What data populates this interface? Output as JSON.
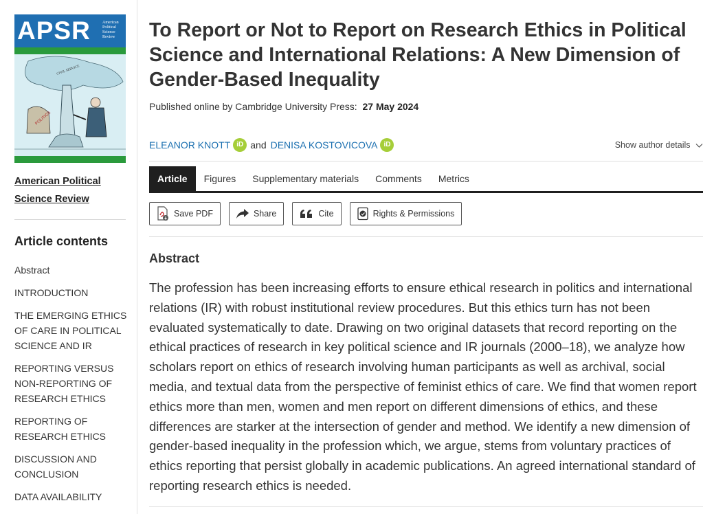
{
  "sidebar": {
    "cover": {
      "logo": "APSR",
      "subtitle": "American Political Science Review"
    },
    "journal_link": "American Political Science Review",
    "contents_title": "Article contents",
    "items": [
      {
        "label": "Abstract"
      },
      {
        "label": "INTRODUCTION"
      },
      {
        "label": "THE EMERGING ETHICS OF CARE IN POLITICAL SCIENCE AND IR"
      },
      {
        "label": "REPORTING VERSUS NON-REPORTING OF RESEARCH ETHICS"
      },
      {
        "label": "REPORTING OF RESEARCH ETHICS"
      },
      {
        "label": "DISCUSSION AND CONCLUSION"
      },
      {
        "label": "DATA AVAILABILITY"
      }
    ]
  },
  "article": {
    "title": "To Report or Not to Report on Research Ethics in Political Science and International Relations: A New Dimension of Gender-Based Inequality",
    "published_label": "Published online by Cambridge University Press:",
    "published_date": "27 May 2024",
    "authors": [
      "ELEANOR KNOTT",
      "DENISA KOSTOVICOVA"
    ],
    "orcid_label": "iD",
    "and_text": "and",
    "show_author_details": "Show author details",
    "tabs": [
      {
        "label": "Article",
        "active": true
      },
      {
        "label": "Figures"
      },
      {
        "label": "Supplementary materials"
      },
      {
        "label": "Comments"
      },
      {
        "label": "Metrics"
      }
    ],
    "tools": [
      {
        "label": "Save PDF",
        "icon": "pdf-icon"
      },
      {
        "label": "Share",
        "icon": "share-icon"
      },
      {
        "label": "Cite",
        "icon": "quote-icon"
      },
      {
        "label": "Rights & Permissions",
        "icon": "permissions-icon"
      }
    ],
    "abstract_heading": "Abstract",
    "abstract_text": "The profession has been increasing efforts to ensure ethical research in politics and international relations (IR) with robust institutional review procedures. But this ethics turn has not been evaluated systematically to date. Drawing on two original datasets that record reporting on the ethical practices of research in key political science and IR journals (2000–18), we analyze how scholars report on ethics of research involving human participants as well as archival, social media, and textual data from the perspective of feminist ethics of care. We find that women report ethics more than men, women and men report on different dimensions of ethics, and these differences are starker at the intersection of gender and method. We identify a new dimension of gender-based inequality in the profession which, we argue, stems from voluntary practices of ethics reporting that persist globally in academic publications. An agreed international standard of reporting research ethics is needed."
  },
  "colors": {
    "link_blue": "#1a6fb0",
    "orcid_green": "#a6ce39",
    "apsr_blue": "#1f6fb2",
    "apsr_green": "#2a9a3c",
    "active_tab": "#1f1f1f"
  }
}
